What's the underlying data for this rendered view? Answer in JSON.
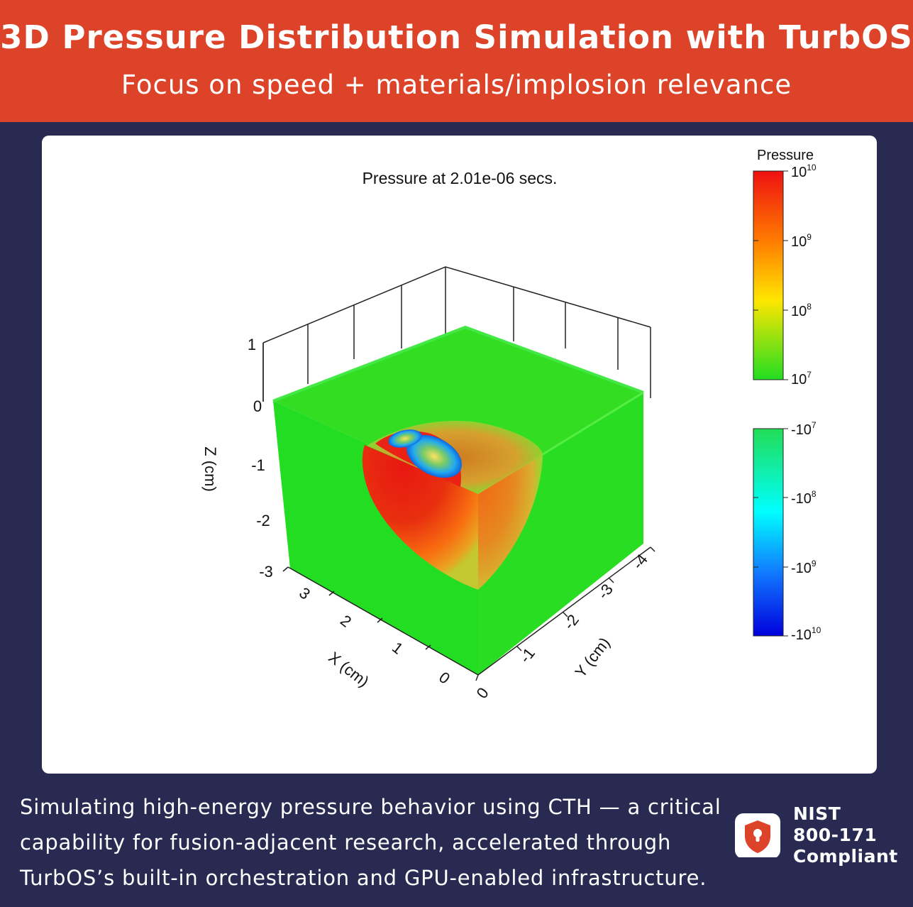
{
  "header": {
    "title": "3D Pressure Distribution Simulation with TurbOS",
    "subtitle": "Focus on speed + materials/implosion relevance"
  },
  "figure": {
    "title": "Pressure at 2.01e-06 secs.",
    "z_axis_label": "Z (cm)",
    "x_axis_label": "X (cm)",
    "y_axis_label": "Y (cm)",
    "z_ticks": [
      "1",
      "0",
      "-1",
      "-2",
      "-3"
    ],
    "x_ticks": [
      "3",
      "2",
      "1",
      "0"
    ],
    "y_ticks": [
      "0",
      "-1",
      "-2",
      "-3",
      "-4"
    ],
    "colorbar": {
      "title": "Pressure",
      "positive": {
        "base": "10",
        "exponents": [
          "10",
          "9",
          "8",
          "7"
        ],
        "colors": [
          "#ee1111",
          "#ff7a00",
          "#ffe600",
          "#22dd22"
        ]
      },
      "negative": {
        "base": "-10",
        "exponents": [
          "7",
          "8",
          "9",
          "10"
        ],
        "colors": [
          "#22dd55",
          "#00ffff",
          "#1177ff",
          "#0000dd"
        ]
      }
    },
    "colors": {
      "ambient": "#22dd22",
      "high_pressure": "#ee1111",
      "mid_pressure": "#ff7a00"
    }
  },
  "footer": {
    "description": "Simulating high-energy pressure behavior using CTH — a critical capability for fusion-adjacent research, accelerated through TurbOS’s built-in orchestration and GPU-enabled infrastructure.",
    "badge": {
      "icon": "shield-lock-icon",
      "line1": "NIST",
      "line2": "800-171",
      "line3": "Compliant"
    },
    "accent": "#dd4328"
  }
}
